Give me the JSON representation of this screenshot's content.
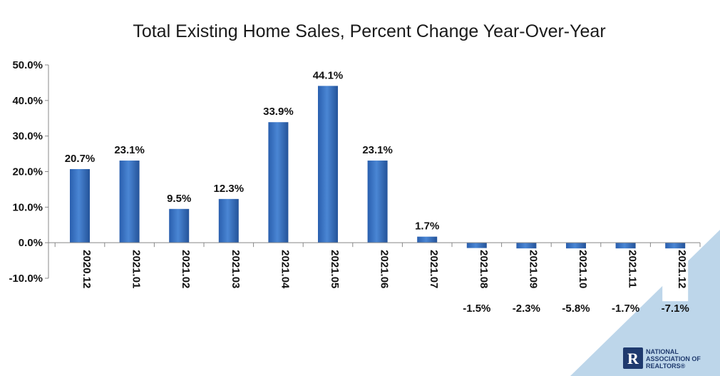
{
  "chart_data": {
    "type": "bar",
    "title": "Total Existing Home Sales, Percent Change Year-Over-Year",
    "xlabel": "",
    "ylabel": "",
    "categories": [
      "2020.12",
      "2021.01",
      "2021.02",
      "2021.03",
      "2021.04",
      "2021.05",
      "2021.06",
      "2021.07",
      "2021.08",
      "2021.09",
      "2021.10",
      "2021.11",
      "2021.12"
    ],
    "values": [
      20.7,
      23.1,
      9.5,
      12.3,
      33.9,
      44.1,
      23.1,
      1.7,
      -1.5,
      -2.3,
      -5.8,
      -1.7,
      -7.1
    ],
    "data_labels": [
      "20.7%",
      "23.1%",
      "9.5%",
      "12.3%",
      "33.9%",
      "44.1%",
      "23.1%",
      "1.7%",
      "-1.5%",
      "-2.3%",
      "-5.8%",
      "-1.7%",
      "-7.1%"
    ],
    "yticks": [
      50,
      40,
      30,
      20,
      10,
      0,
      -10
    ],
    "ytick_labels": [
      "50.0%",
      "40.0%",
      "30.0%",
      "20.0%",
      "10.0%",
      "0.0%",
      "-10.0%"
    ],
    "ylim": [
      -10,
      50
    ],
    "grid": false,
    "legend": "none",
    "bar_color": "#3a74c4",
    "bar_color_dark": "#1f4f99"
  },
  "logo": {
    "line1": "NATIONAL",
    "line2": "ASSOCIATION OF",
    "line3": "REALTORS®",
    "mark": "R",
    "color": "#1f3a6e"
  },
  "decor": {
    "corner_color": "#bdd6ea"
  }
}
